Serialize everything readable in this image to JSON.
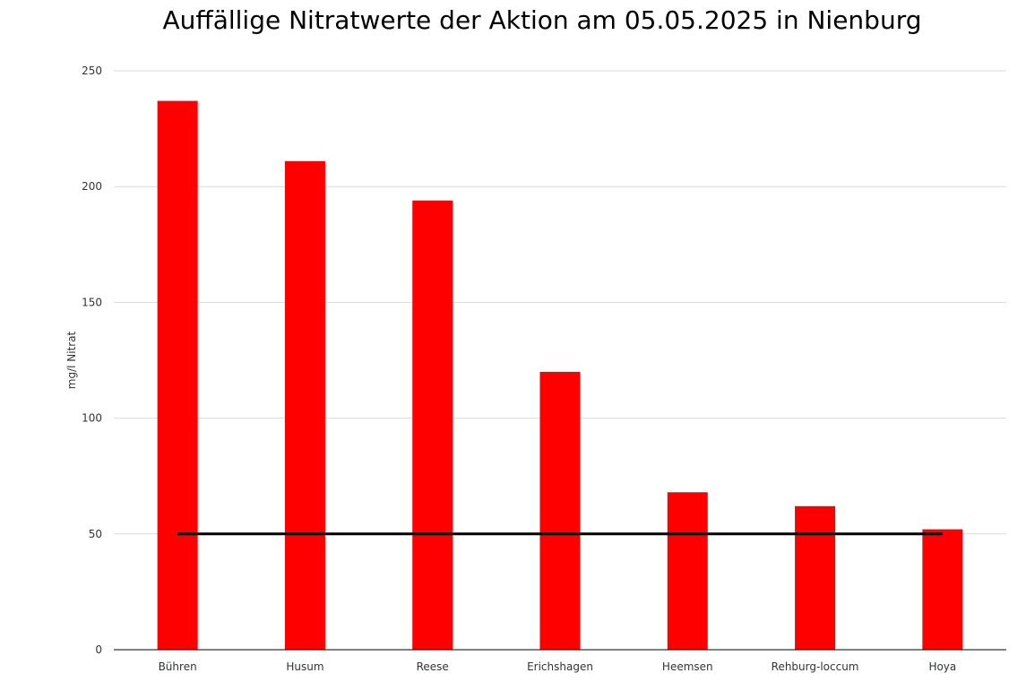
{
  "chart_data": {
    "type": "bar",
    "title": "Auffällige Nitratwerte der Aktion am 05.05.2025  in Nienburg",
    "xlabel": "",
    "ylabel": "mg/l Nitrat",
    "categories": [
      "Bühren",
      "Husum",
      "Reese",
      "Erichshagen",
      "Heemsen",
      "Rehburg-loccum",
      "Hoya"
    ],
    "values": [
      237,
      211,
      194,
      120,
      68,
      62,
      52
    ],
    "ylim": [
      0,
      250
    ],
    "yticks": [
      0,
      50,
      100,
      150,
      200,
      250
    ],
    "reference_line": {
      "value": 50
    },
    "grid": true,
    "legend": false,
    "colors": {
      "bar": "#ff0000",
      "reference_line": "#000000",
      "grid": "#d9d9d9",
      "axis": "#000000"
    }
  }
}
